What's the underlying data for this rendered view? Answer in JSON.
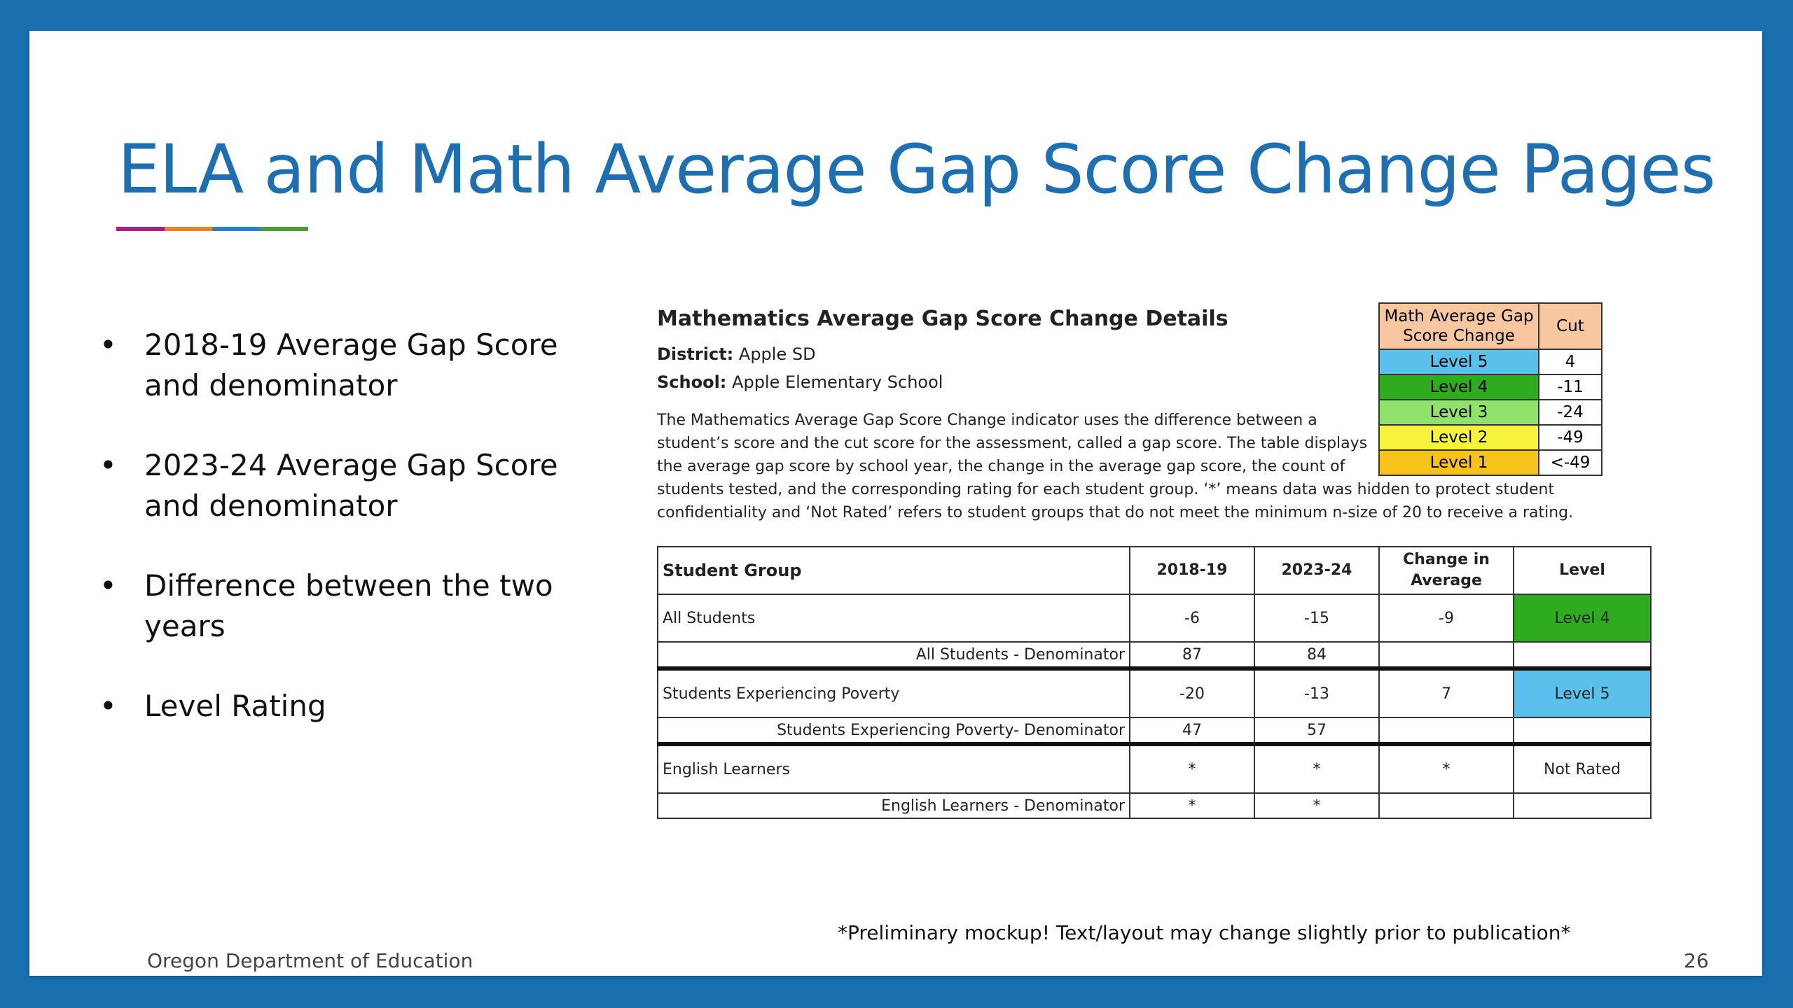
{
  "slide": {
    "title": "ELA and Math Average Gap Score Change Pages",
    "accent_colors": [
      "#a2237f",
      "#e0832b",
      "#2f7fc1",
      "#4d9a3a"
    ],
    "bullets": [
      "2018-19 Average Gap Score and denominator",
      "2023-24 Average Gap Score and denominator",
      "Difference between the two years",
      "Level Rating"
    ],
    "bullet_glyph": "•",
    "footer_org": "Oregon Department of Education",
    "footer_note": "*Preliminary mockup! Text/layout may change slightly prior to publication*",
    "page_number": "26"
  },
  "figure": {
    "title": "Mathematics Average Gap Score Change Details",
    "district_label": "District:",
    "district_value": "Apple SD",
    "school_label": "School:",
    "school_value": "Apple Elementary School",
    "description_part1": "The Mathematics Average Gap Score Change indicator uses the difference between a student’s score and the cut score for the assessment, called a gap score. The table displays the average gap score by school year, the change in the average gap score, the count of",
    "description_part2": "students tested, and the corresponding rating for each student group. ‘*’ means data was hidden to protect student confidentiality and ‘Not Rated’ refers to student groups that do not meet the minimum n-size of 20 to receive a rating.",
    "legend": {
      "header_label": "Math Average Gap Score Change",
      "header_cut": "Cut",
      "header_color": "#f8c7a0",
      "levels": [
        {
          "label": "Level 5",
          "cut": "4",
          "color": "#5bc0eb"
        },
        {
          "label": "Level 4",
          "cut": "-11",
          "color": "#2eab1f"
        },
        {
          "label": "Level 3",
          "cut": "-24",
          "color": "#8fe36b"
        },
        {
          "label": "Level 2",
          "cut": "-49",
          "color": "#f7f23a"
        },
        {
          "label": "Level 1",
          "cut": "<-49",
          "color": "#f7c21a"
        }
      ]
    },
    "table": {
      "headers": [
        "Student Group",
        "2018-19",
        "2023-24",
        "Change in Average",
        "Level"
      ],
      "groups": [
        {
          "name": "All Students",
          "y1": "-6",
          "y2": "-15",
          "change": "-9",
          "level": "Level 4",
          "level_color": "#2eab1f",
          "denom_label": "All Students - Denominator",
          "d1": "87",
          "d2": "84"
        },
        {
          "name": "Students Experiencing Poverty",
          "y1": "-20",
          "y2": "-13",
          "change": "7",
          "level": "Level 5",
          "level_color": "#5bc0eb",
          "denom_label": "Students Experiencing Poverty- Denominator",
          "d1": "47",
          "d2": "57"
        },
        {
          "name": "English Learners",
          "y1": "*",
          "y2": "*",
          "change": "*",
          "level": "Not Rated",
          "level_color": "#ffffff",
          "denom_label": "English Learners - Denominator",
          "d1": "*",
          "d2": "*"
        }
      ]
    }
  }
}
